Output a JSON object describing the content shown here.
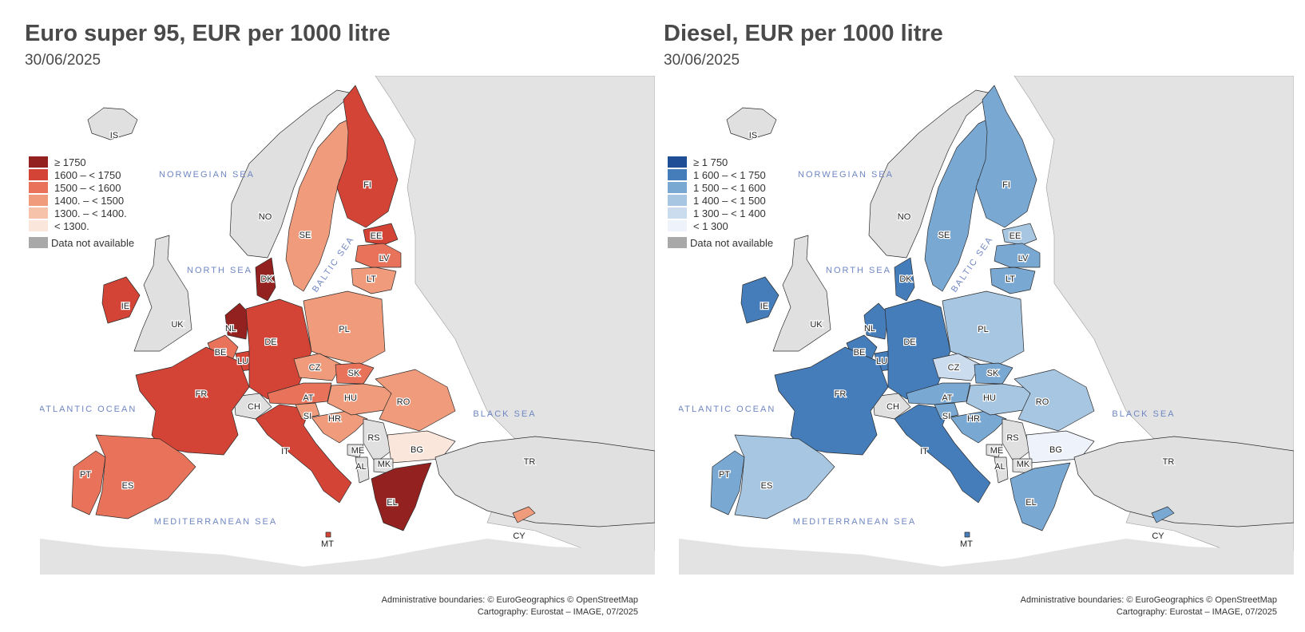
{
  "maps": [
    {
      "title": "Euro super 95, EUR per 1000 litre",
      "date": "30/06/2025",
      "legend": [
        {
          "label": "≥ 1750",
          "color": "#93211f"
        },
        {
          "label": "1600 – < 1750",
          "color": "#d44436"
        },
        {
          "label": "1500 – < 1600",
          "color": "#e8735a"
        },
        {
          "label": "1400. – < 1500",
          "color": "#f09c7c"
        },
        {
          "label": "1300. – < 1400.",
          "color": "#f6c2aa"
        },
        {
          "label": "< 1300.",
          "color": "#fbe6dc"
        }
      ],
      "legend_na": {
        "label": "Data not available",
        "color": "#a9a9a9"
      },
      "countries": {
        "IS": "na",
        "NO": "na",
        "UK": "na",
        "CH": "na",
        "RS": "na",
        "ME": "na",
        "AL": "na",
        "MK": "na",
        "TR": "na",
        "FI": "1600 – < 1750",
        "EE": "1600 – < 1750",
        "IE": "1600 – < 1750",
        "DE": "1600 – < 1750",
        "FR": "1600 – < 1750",
        "IT": "1600 – < 1750",
        "LU": "1600 – < 1750",
        "MT": "1600 – < 1750",
        "BE": "1500 – < 1600",
        "NL": "≥ 1750",
        "DK": "≥ 1750",
        "EL": "≥ 1750",
        "LV": "1500 – < 1600",
        "PT": "1500 – < 1600",
        "ES": "1500 – < 1600",
        "AT": "1500 – < 1600",
        "SK": "1500 – < 1600",
        "SE": "1400. – < 1500",
        "LT": "1400. – < 1500",
        "PL": "1400. – < 1500",
        "CZ": "1400. – < 1500",
        "HU": "1400. – < 1500",
        "RO": "1400. – < 1500",
        "HR": "1400. – < 1500",
        "SI": "1400. – < 1500",
        "CY": "1400. – < 1500",
        "BG": "< 1300."
      },
      "credits": [
        "Administrative boundaries: © EuroGeographics © OpenStreetMap",
        "Cartography: Eurostat – IMAGE, 07/2025"
      ]
    },
    {
      "title": "Diesel, EUR per 1000 litre",
      "date": "30/06/2025",
      "legend": [
        {
          "label": "≥ 1 750",
          "color": "#1f4e96"
        },
        {
          "label": "1 600 – < 1 750",
          "color": "#457dba"
        },
        {
          "label": "1 500 – < 1 600",
          "color": "#79a8d3"
        },
        {
          "label": "1 400 – < 1 500",
          "color": "#a7c6e2"
        },
        {
          "label": "1 300 – < 1 400",
          "color": "#ccdcef"
        },
        {
          "label": "< 1 300",
          "color": "#eef2fb"
        }
      ],
      "legend_na": {
        "label": "Data not available",
        "color": "#a9a9a9"
      },
      "countries": {
        "IS": "na",
        "NO": "na",
        "UK": "na",
        "CH": "na",
        "RS": "na",
        "ME": "na",
        "AL": "na",
        "MK": "na",
        "TR": "na",
        "IE": "1 600 – < 1 750",
        "DK": "1 600 – < 1 750",
        "NL": "1 600 – < 1 750",
        "BE": "1 600 – < 1 750",
        "LU": "1 600 – < 1 750",
        "DE": "1 600 – < 1 750",
        "FR": "1 600 – < 1 750",
        "IT": "1 600 – < 1 750",
        "MT": "1 600 – < 1 750",
        "FI": "1 500 – < 1 600",
        "SE": "1 500 – < 1 600",
        "LV": "1 500 – < 1 600",
        "LT": "1 500 – < 1 600",
        "PT": "1 500 – < 1 600",
        "AT": "1 500 – < 1 600",
        "SK": "1 500 – < 1 600",
        "SI": "1 500 – < 1 600",
        "HR": "1 500 – < 1 600",
        "EL": "1 500 – < 1 600",
        "CY": "1 500 – < 1 600",
        "EE": "1 400 – < 1 500",
        "PL": "1 400 – < 1 500",
        "HU": "1 400 – < 1 500",
        "RO": "1 400 – < 1 500",
        "ES": "1 400 – < 1 500",
        "CZ": "1 300 – < 1 400",
        "BG": "< 1 300"
      },
      "credits": [
        "Administrative boundaries: © EuroGeographics © OpenStreetMap",
        "Cartography: Eurostat – IMAGE, 07/2025"
      ]
    }
  ],
  "sea_labels": [
    "NORWEGIAN SEA",
    "NORTH SEA",
    "BALTIC SEA",
    "ATLANTIC OCEAN",
    "BLACK SEA",
    "MEDITERRANEAN SEA"
  ]
}
